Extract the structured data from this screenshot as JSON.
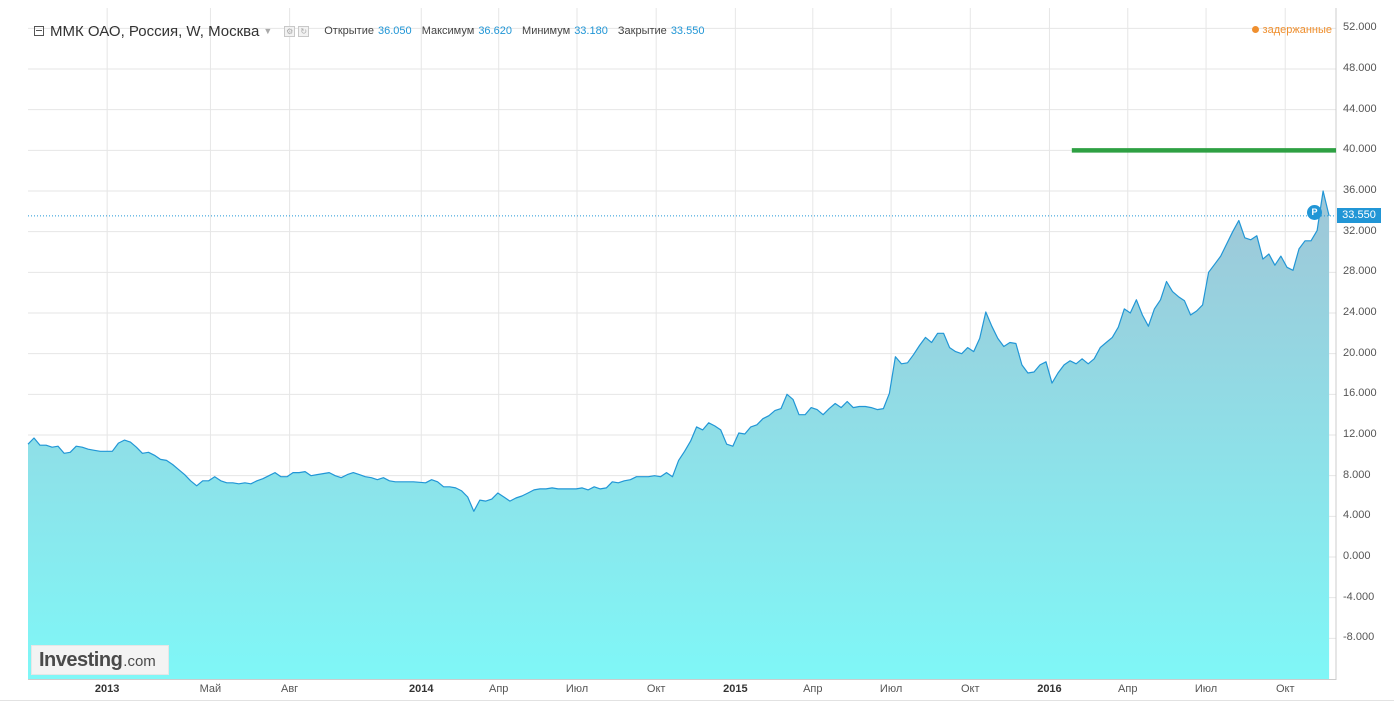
{
  "header": {
    "title": "ММК ОАО, Россия, W, Москва",
    "open_label": "Открытие",
    "open_value": "36.050",
    "high_label": "Максимум",
    "high_value": "36.620",
    "low_label": "Минимум",
    "low_value": "33.180",
    "close_label": "Закрытие",
    "close_value": "33.550",
    "delayed_label": "задержанные"
  },
  "logo": {
    "main": "Investing",
    "suffix": ".com"
  },
  "markers": {
    "last_price_badge": "33.550",
    "p_marker": "P"
  },
  "colors": {
    "line": "#2196d6",
    "fill_top": "#9fc6d7",
    "fill_bottom": "#7ff7f7",
    "resistance": "#2ea043",
    "delayed": "#ef8f2e",
    "grid": "#e6e6e6"
  },
  "chart_data": {
    "type": "area",
    "title": "ММК ОАО, Россия, W, Москва",
    "xlabel": "",
    "ylabel": "",
    "x_range": [
      "2012-10-01",
      "2016-11-29"
    ],
    "ylim": [
      -12,
      54
    ],
    "grid": true,
    "y_ticks": [
      "52.000",
      "48.000",
      "44.000",
      "40.000",
      "36.000",
      "32.000",
      "28.000",
      "24.000",
      "20.000",
      "16.000",
      "12.000",
      "8.000",
      "4.000",
      "0.000",
      "-4.000",
      "-8.000"
    ],
    "x_ticks": [
      {
        "date": "2013-01-01",
        "label": "2013",
        "bold": true
      },
      {
        "date": "2013-05-01",
        "label": "Май",
        "bold": false
      },
      {
        "date": "2013-08-01",
        "label": "Авг",
        "bold": false
      },
      {
        "date": "2014-01-01",
        "label": "2014",
        "bold": true
      },
      {
        "date": "2014-04-01",
        "label": "Апр",
        "bold": false
      },
      {
        "date": "2014-07-01",
        "label": "Июл",
        "bold": false
      },
      {
        "date": "2014-10-01",
        "label": "Окт",
        "bold": false
      },
      {
        "date": "2015-01-01",
        "label": "2015",
        "bold": true
      },
      {
        "date": "2015-04-01",
        "label": "Апр",
        "bold": false
      },
      {
        "date": "2015-07-01",
        "label": "Июл",
        "bold": false
      },
      {
        "date": "2015-10-01",
        "label": "Окт",
        "bold": false
      },
      {
        "date": "2016-01-01",
        "label": "2016",
        "bold": true
      },
      {
        "date": "2016-04-01",
        "label": "Апр",
        "bold": false
      },
      {
        "date": "2016-07-01",
        "label": "Июл",
        "bold": false
      },
      {
        "date": "2016-10-01",
        "label": "Окт",
        "bold": false
      }
    ],
    "series": [
      {
        "values": [
          [
            "2012-10-01",
            11.1
          ],
          [
            "2012-10-08",
            11.7
          ],
          [
            "2012-10-15",
            11.0
          ],
          [
            "2012-10-22",
            11.0
          ],
          [
            "2012-10-29",
            10.8
          ],
          [
            "2012-11-05",
            10.9
          ],
          [
            "2012-11-12",
            10.2
          ],
          [
            "2012-11-19",
            10.3
          ],
          [
            "2012-11-26",
            10.9
          ],
          [
            "2012-12-03",
            10.8
          ],
          [
            "2012-12-10",
            10.6
          ],
          [
            "2012-12-17",
            10.5
          ],
          [
            "2012-12-24",
            10.4
          ],
          [
            "2013-01-07",
            10.4
          ],
          [
            "2013-01-14",
            11.2
          ],
          [
            "2013-01-21",
            11.5
          ],
          [
            "2013-01-28",
            11.3
          ],
          [
            "2013-02-04",
            10.8
          ],
          [
            "2013-02-11",
            10.2
          ],
          [
            "2013-02-18",
            10.3
          ],
          [
            "2013-02-25",
            10.0
          ],
          [
            "2013-03-04",
            9.6
          ],
          [
            "2013-03-11",
            9.5
          ],
          [
            "2013-03-18",
            9.1
          ],
          [
            "2013-03-25",
            8.6
          ],
          [
            "2013-04-01",
            8.1
          ],
          [
            "2013-04-08",
            7.5
          ],
          [
            "2013-04-15",
            7.0
          ],
          [
            "2013-04-22",
            7.5
          ],
          [
            "2013-04-29",
            7.5
          ],
          [
            "2013-05-06",
            7.9
          ],
          [
            "2013-05-13",
            7.5
          ],
          [
            "2013-05-20",
            7.3
          ],
          [
            "2013-05-27",
            7.3
          ],
          [
            "2013-06-03",
            7.2
          ],
          [
            "2013-06-10",
            7.3
          ],
          [
            "2013-06-17",
            7.2
          ],
          [
            "2013-06-24",
            7.5
          ],
          [
            "2013-07-01",
            7.7
          ],
          [
            "2013-07-08",
            8.0
          ],
          [
            "2013-07-15",
            8.3
          ],
          [
            "2013-07-22",
            7.9
          ],
          [
            "2013-07-29",
            7.9
          ],
          [
            "2013-08-05",
            8.3
          ],
          [
            "2013-08-12",
            8.3
          ],
          [
            "2013-08-19",
            8.4
          ],
          [
            "2013-08-26",
            8.0
          ],
          [
            "2013-09-02",
            8.1
          ],
          [
            "2013-09-09",
            8.2
          ],
          [
            "2013-09-16",
            8.3
          ],
          [
            "2013-09-23",
            8.0
          ],
          [
            "2013-09-30",
            7.8
          ],
          [
            "2013-10-07",
            8.1
          ],
          [
            "2013-10-14",
            8.3
          ],
          [
            "2013-10-21",
            8.1
          ],
          [
            "2013-10-28",
            7.9
          ],
          [
            "2013-11-04",
            7.8
          ],
          [
            "2013-11-11",
            7.6
          ],
          [
            "2013-11-18",
            7.8
          ],
          [
            "2013-11-25",
            7.5
          ],
          [
            "2013-12-02",
            7.4
          ],
          [
            "2013-12-09",
            7.4
          ],
          [
            "2013-12-16",
            7.4
          ],
          [
            "2013-12-23",
            7.4
          ],
          [
            "2014-01-06",
            7.3
          ],
          [
            "2014-01-13",
            7.6
          ],
          [
            "2014-01-20",
            7.4
          ],
          [
            "2014-01-27",
            6.9
          ],
          [
            "2014-02-03",
            6.9
          ],
          [
            "2014-02-10",
            6.8
          ],
          [
            "2014-02-17",
            6.5
          ],
          [
            "2014-02-24",
            5.9
          ],
          [
            "2014-03-03",
            4.5
          ],
          [
            "2014-03-10",
            5.6
          ],
          [
            "2014-03-17",
            5.5
          ],
          [
            "2014-03-24",
            5.7
          ],
          [
            "2014-03-31",
            6.3
          ],
          [
            "2014-04-07",
            5.9
          ],
          [
            "2014-04-14",
            5.5
          ],
          [
            "2014-04-21",
            5.8
          ],
          [
            "2014-04-28",
            6.0
          ],
          [
            "2014-05-05",
            6.3
          ],
          [
            "2014-05-12",
            6.6
          ],
          [
            "2014-05-19",
            6.7
          ],
          [
            "2014-05-26",
            6.7
          ],
          [
            "2014-06-02",
            6.8
          ],
          [
            "2014-06-09",
            6.7
          ],
          [
            "2014-06-16",
            6.7
          ],
          [
            "2014-06-23",
            6.7
          ],
          [
            "2014-06-30",
            6.7
          ],
          [
            "2014-07-07",
            6.8
          ],
          [
            "2014-07-14",
            6.6
          ],
          [
            "2014-07-21",
            6.9
          ],
          [
            "2014-07-28",
            6.7
          ],
          [
            "2014-08-04",
            6.8
          ],
          [
            "2014-08-11",
            7.4
          ],
          [
            "2014-08-18",
            7.3
          ],
          [
            "2014-08-25",
            7.5
          ],
          [
            "2014-09-01",
            7.6
          ],
          [
            "2014-09-08",
            7.9
          ],
          [
            "2014-09-15",
            7.9
          ],
          [
            "2014-09-22",
            7.9
          ],
          [
            "2014-09-29",
            8.0
          ],
          [
            "2014-10-06",
            7.9
          ],
          [
            "2014-10-13",
            8.3
          ],
          [
            "2014-10-20",
            7.9
          ],
          [
            "2014-10-27",
            9.5
          ],
          [
            "2014-11-03",
            10.4
          ],
          [
            "2014-11-10",
            11.4
          ],
          [
            "2014-11-17",
            12.8
          ],
          [
            "2014-11-24",
            12.5
          ],
          [
            "2014-12-01",
            13.2
          ],
          [
            "2014-12-08",
            12.9
          ],
          [
            "2014-12-15",
            12.5
          ],
          [
            "2014-12-22",
            11.1
          ],
          [
            "2014-12-29",
            10.9
          ],
          [
            "2015-01-05",
            12.2
          ],
          [
            "2015-01-12",
            12.1
          ],
          [
            "2015-01-19",
            12.8
          ],
          [
            "2015-01-26",
            13.0
          ],
          [
            "2015-02-02",
            13.6
          ],
          [
            "2015-02-09",
            13.9
          ],
          [
            "2015-02-16",
            14.4
          ],
          [
            "2015-02-23",
            14.6
          ],
          [
            "2015-03-02",
            16.0
          ],
          [
            "2015-03-09",
            15.5
          ],
          [
            "2015-03-16",
            14.0
          ],
          [
            "2015-03-23",
            14.0
          ],
          [
            "2015-03-30",
            14.7
          ],
          [
            "2015-04-06",
            14.5
          ],
          [
            "2015-04-13",
            14.0
          ],
          [
            "2015-04-20",
            14.6
          ],
          [
            "2015-04-27",
            15.1
          ],
          [
            "2015-05-04",
            14.7
          ],
          [
            "2015-05-11",
            15.3
          ],
          [
            "2015-05-18",
            14.7
          ],
          [
            "2015-05-25",
            14.8
          ],
          [
            "2015-06-01",
            14.8
          ],
          [
            "2015-06-08",
            14.7
          ],
          [
            "2015-06-15",
            14.5
          ],
          [
            "2015-06-22",
            14.6
          ],
          [
            "2015-06-29",
            16.1
          ],
          [
            "2015-07-06",
            19.7
          ],
          [
            "2015-07-13",
            19.0
          ],
          [
            "2015-07-20",
            19.1
          ],
          [
            "2015-07-27",
            19.9
          ],
          [
            "2015-08-03",
            20.8
          ],
          [
            "2015-08-10",
            21.6
          ],
          [
            "2015-08-17",
            21.1
          ],
          [
            "2015-08-24",
            22.0
          ],
          [
            "2015-08-31",
            22.0
          ],
          [
            "2015-09-07",
            20.6
          ],
          [
            "2015-09-14",
            20.2
          ],
          [
            "2015-09-21",
            20.0
          ],
          [
            "2015-09-28",
            20.6
          ],
          [
            "2015-10-05",
            20.2
          ],
          [
            "2015-10-12",
            21.5
          ],
          [
            "2015-10-19",
            24.1
          ],
          [
            "2015-10-26",
            22.7
          ],
          [
            "2015-11-02",
            21.5
          ],
          [
            "2015-11-09",
            20.7
          ],
          [
            "2015-11-16",
            21.1
          ],
          [
            "2015-11-23",
            21.0
          ],
          [
            "2015-11-30",
            18.9
          ],
          [
            "2015-12-07",
            18.1
          ],
          [
            "2015-12-14",
            18.2
          ],
          [
            "2015-12-21",
            18.9
          ],
          [
            "2015-12-28",
            19.2
          ],
          [
            "2016-01-04",
            17.1
          ],
          [
            "2016-01-11",
            18.1
          ],
          [
            "2016-01-18",
            18.9
          ],
          [
            "2016-01-25",
            19.3
          ],
          [
            "2016-02-01",
            19.0
          ],
          [
            "2016-02-08",
            19.5
          ],
          [
            "2016-02-15",
            19.0
          ],
          [
            "2016-02-22",
            19.5
          ],
          [
            "2016-02-29",
            20.6
          ],
          [
            "2016-03-07",
            21.1
          ],
          [
            "2016-03-14",
            21.6
          ],
          [
            "2016-03-21",
            22.6
          ],
          [
            "2016-03-28",
            24.4
          ],
          [
            "2016-04-04",
            24.0
          ],
          [
            "2016-04-11",
            25.3
          ],
          [
            "2016-04-18",
            23.8
          ],
          [
            "2016-04-25",
            22.7
          ],
          [
            "2016-05-02",
            24.4
          ],
          [
            "2016-05-09",
            25.3
          ],
          [
            "2016-05-16",
            27.1
          ],
          [
            "2016-05-23",
            26.1
          ],
          [
            "2016-05-30",
            25.6
          ],
          [
            "2016-06-06",
            25.2
          ],
          [
            "2016-06-13",
            23.8
          ],
          [
            "2016-06-20",
            24.2
          ],
          [
            "2016-06-27",
            24.8
          ],
          [
            "2016-07-04",
            28.0
          ],
          [
            "2016-07-11",
            28.8
          ],
          [
            "2016-07-18",
            29.6
          ],
          [
            "2016-07-25",
            30.8
          ],
          [
            "2016-08-01",
            32.0
          ],
          [
            "2016-08-08",
            33.1
          ],
          [
            "2016-08-15",
            31.4
          ],
          [
            "2016-08-22",
            31.2
          ],
          [
            "2016-08-29",
            31.6
          ],
          [
            "2016-09-05",
            29.3
          ],
          [
            "2016-09-12",
            29.8
          ],
          [
            "2016-09-19",
            28.7
          ],
          [
            "2016-09-26",
            29.6
          ],
          [
            "2016-10-03",
            28.5
          ],
          [
            "2016-10-10",
            28.2
          ],
          [
            "2016-10-17",
            30.3
          ],
          [
            "2016-10-24",
            31.1
          ],
          [
            "2016-10-31",
            31.1
          ],
          [
            "2016-11-07",
            32.1
          ],
          [
            "2016-11-14",
            36.0
          ],
          [
            "2016-11-21",
            33.55
          ]
        ]
      }
    ],
    "last_price": 33.55,
    "resistance_level": {
      "value": 40.0,
      "start": "2016-01-27",
      "end": "2016-11-29"
    }
  }
}
